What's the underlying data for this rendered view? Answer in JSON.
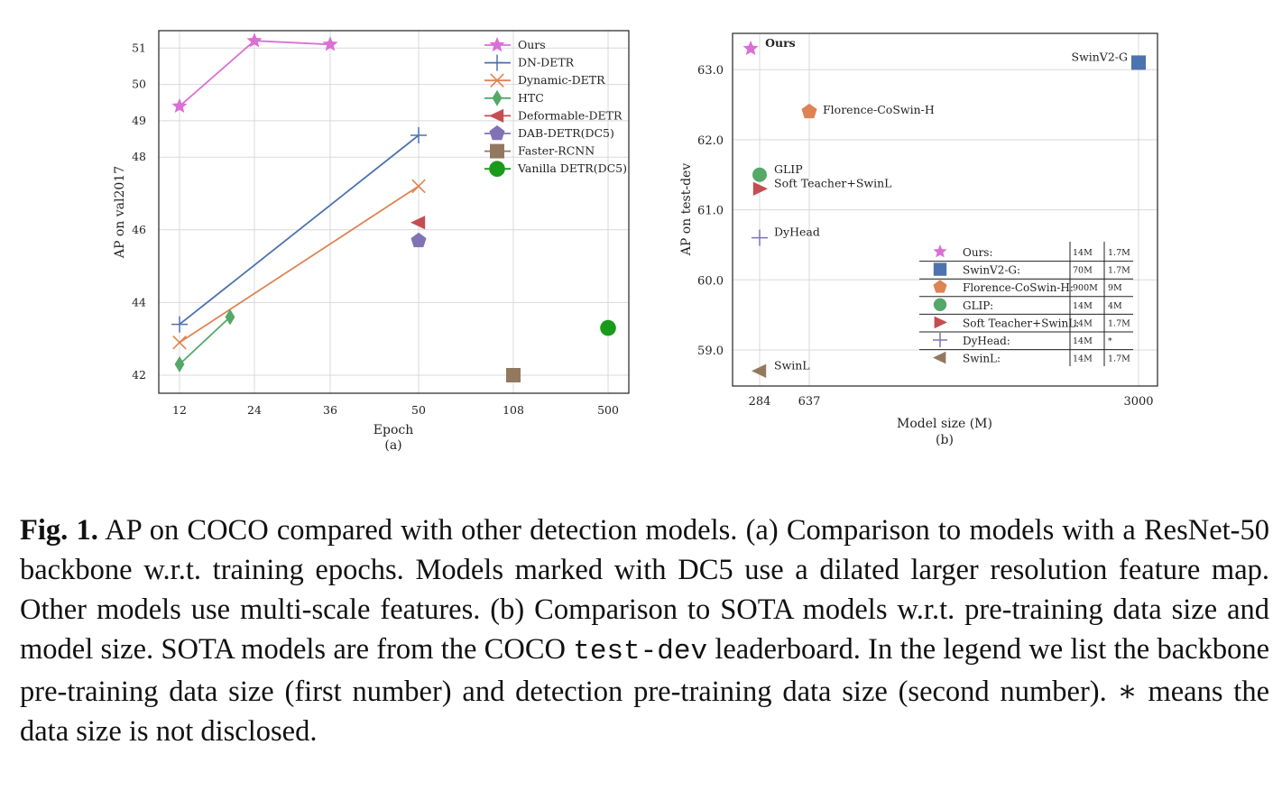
{
  "chart_data": [
    {
      "type": "line",
      "sublabel": "(a)",
      "xlabel": "Epoch",
      "ylabel": "AP on val2017",
      "x_ticks": [
        "12",
        "24",
        "36",
        "50",
        "108",
        "500"
      ],
      "y_ticks": [
        42,
        44,
        46,
        48,
        49,
        50,
        51
      ],
      "grid": true,
      "legend_position": "top-right",
      "series": [
        {
          "name": "Ours",
          "marker": "star",
          "color": "#da70d6",
          "points": [
            {
              "x": "12",
              "y": 49.4
            },
            {
              "x": "24",
              "y": 51.2
            },
            {
              "x": "36",
              "y": 51.1
            }
          ]
        },
        {
          "name": "DN-DETR",
          "marker": "plus",
          "color": "#4c72b0",
          "points": [
            {
              "x": "12",
              "y": 43.4
            },
            {
              "x": "50",
              "y": 48.6
            }
          ]
        },
        {
          "name": "Dynamic-DETR",
          "marker": "x",
          "color": "#dd8452",
          "points": [
            {
              "x": "12",
              "y": 42.9
            },
            {
              "x": "50",
              "y": 47.2
            }
          ]
        },
        {
          "name": "HTC",
          "marker": "diamond",
          "color": "#55a868",
          "points": [
            {
              "x": "12",
              "y": 42.3
            },
            {
              "x": "20",
              "y": 43.6
            }
          ]
        },
        {
          "name": "Deformable-DETR",
          "marker": "triangle-left",
          "color": "#c44e52",
          "points": [
            {
              "x": "50",
              "y": 46.2
            }
          ]
        },
        {
          "name": "DAB-DETR(DC5)",
          "marker": "pentagon",
          "color": "#8172b3",
          "points": [
            {
              "x": "50",
              "y": 45.7
            }
          ]
        },
        {
          "name": "Faster-RCNN",
          "marker": "square",
          "color": "#937860",
          "points": [
            {
              "x": "108",
              "y": 42.0
            }
          ]
        },
        {
          "name": "Vanilla DETR(DC5)",
          "marker": "circle",
          "color": "#1a9a1a",
          "points": [
            {
              "x": "500",
              "y": 43.3
            }
          ]
        }
      ]
    },
    {
      "type": "scatter",
      "sublabel": "(b)",
      "xlabel": "Model size (M)",
      "ylabel": "AP on test-dev",
      "x_ticks": [
        284,
        637,
        3000
      ],
      "y_ticks": [
        "59.0",
        "60.0",
        "61.0",
        "62.0",
        "63.0"
      ],
      "grid": true,
      "legend_position": "bottom-right",
      "legend_table_headers": [],
      "points": [
        {
          "name": "Ours",
          "label": "Ours",
          "bold": true,
          "x": 218,
          "y": 63.3,
          "marker": "star",
          "color": "#da70d6",
          "backbone_data": "14M",
          "detection_data": "1.7M"
        },
        {
          "name": "SwinV2-G",
          "label": "SwinV2-G",
          "x": 3000,
          "y": 63.1,
          "marker": "square",
          "color": "#4c72b0",
          "backbone_data": "70M",
          "detection_data": "1.7M"
        },
        {
          "name": "Florence-CoSwin-H",
          "label": "Florence-CoSwin-H",
          "x": 637,
          "y": 62.4,
          "marker": "pentagon",
          "color": "#dd8452",
          "backbone_data": "900M",
          "detection_data": "9M"
        },
        {
          "name": "GLIP",
          "label": "GLIP",
          "x": 284,
          "y": 61.5,
          "marker": "circle",
          "color": "#55a868",
          "backbone_data": "14M",
          "detection_data": "4M"
        },
        {
          "name": "Soft Teacher+SwinL",
          "label": "Soft Teacher+SwinL",
          "x": 284,
          "y": 61.3,
          "marker": "triangle-right",
          "color": "#c44e52",
          "backbone_data": "14M",
          "detection_data": "1.7M"
        },
        {
          "name": "DyHead",
          "label": "DyHead",
          "x": 284,
          "y": 60.6,
          "marker": "plus",
          "color": "#8172b3",
          "backbone_data": "14M",
          "detection_data": "*"
        },
        {
          "name": "SwinL",
          "label": "SwinL",
          "x": 284,
          "y": 58.7,
          "marker": "triangle-left",
          "color": "#937860",
          "backbone_data": "14M",
          "detection_data": "1.7M"
        }
      ]
    }
  ],
  "caption": {
    "label": "Fig. 1.",
    "text_1": " AP on COCO compared with other detection models. (a) Comparison to models with a ResNet-50 backbone w.r.t. training epochs. Models marked with DC5 use a dilated larger resolution feature map. Other models use multi-scale features. (b) Comparison to SOTA models w.r.t. pre-training data size and model size. SOTA models are from the COCO ",
    "mono": "test-dev",
    "text_2": " leaderboard. In the legend we list the backbone pre-training data size (first number) and detection pre-training data size (second number). ∗ means the data size is not disclosed."
  }
}
